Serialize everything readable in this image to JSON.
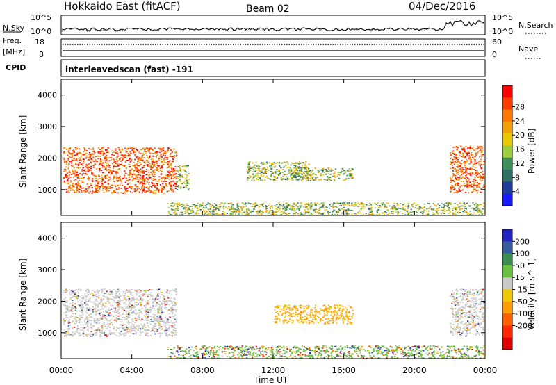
{
  "header": {
    "station": "Hokkaido East (fitACF)",
    "beam": "Beam 02",
    "date": "04/Dec/2016"
  },
  "top_panels": {
    "nsky_label": "N.Sky",
    "nsky_ticks": [
      "10^5",
      "10^0"
    ],
    "nsearch_label": "N.Search",
    "nsearch_ticks": [
      "10^5",
      "10^0"
    ],
    "freq_label": "Freq.",
    "freq_unit": "[MHz]",
    "freq_ticks": [
      "18",
      "8"
    ],
    "nave_label": "Nave",
    "nave_ticks": [
      "60",
      "0"
    ],
    "cpid_label": "CPID",
    "cpid_text": "interleavedscan (fast) -191"
  },
  "colors": {
    "power": [
      "#1a1aff",
      "#1e3c9a",
      "#2e6f63",
      "#3c8f5a",
      "#9ccc3c",
      "#e8c800",
      "#f0a000",
      "#ff7800",
      "#ff3c00",
      "#ff0000"
    ],
    "velocity": [
      "#2222c0",
      "#355aa0",
      "#3c8c50",
      "#6cc040",
      "#c8c8c8",
      "#f0c800",
      "#ff9c00",
      "#ff6000",
      "#ff2800",
      "#e00000"
    ]
  },
  "chart_data": [
    {
      "type": "heatmap",
      "title": "",
      "xlabel": "",
      "ylabel": "Slant Range [km]",
      "x_ticks": [
        "00:00",
        "04:00",
        "08:00",
        "12:00",
        "16:00",
        "20:00",
        "00:00"
      ],
      "y_ticks": [
        "1000",
        "2000",
        "3000",
        "4000"
      ],
      "ylim": [
        180,
        4500
      ],
      "colorbar_label": "Power [dB]",
      "colorbar_ticks": [
        "4",
        "8",
        "12",
        "16",
        "20",
        "24",
        "28"
      ],
      "features": [
        {
          "t": [
            0.1,
            6.5
          ],
          "range": [
            900,
            2350
          ],
          "level": "28"
        },
        {
          "t": [
            6.5,
            7.2
          ],
          "range": [
            1000,
            1800
          ],
          "level": "16"
        },
        {
          "t": [
            10.5,
            14.0
          ],
          "range": [
            1300,
            1900
          ],
          "level": "12"
        },
        {
          "t": [
            13.0,
            16.5
          ],
          "range": [
            1300,
            1700
          ],
          "level": "12"
        },
        {
          "t": [
            6.0,
            23.9
          ],
          "range": [
            200,
            600
          ],
          "level": "16"
        },
        {
          "t": [
            22.0,
            23.9
          ],
          "range": [
            900,
            2400
          ],
          "level": "28"
        }
      ]
    },
    {
      "type": "heatmap",
      "title": "",
      "xlabel": "Time UT",
      "ylabel": "Slant Range [km]",
      "x_ticks": [
        "00:00",
        "04:00",
        "08:00",
        "12:00",
        "16:00",
        "20:00",
        "00:00"
      ],
      "y_ticks": [
        "1000",
        "2000",
        "3000",
        "4000"
      ],
      "ylim": [
        180,
        4500
      ],
      "colorbar_label": "Velocity [m s^-1]",
      "colorbar_ticks": [
        "200",
        "100",
        "50",
        "15",
        "-15",
        "-50",
        "-100",
        "-200"
      ],
      "features": [
        {
          "t": [
            0.1,
            6.5
          ],
          "range": [
            900,
            2400
          ],
          "level": "-15 to 15"
        },
        {
          "t": [
            12.0,
            16.5
          ],
          "range": [
            1300,
            1900
          ],
          "level": "-50"
        },
        {
          "t": [
            6.0,
            23.9
          ],
          "range": [
            200,
            600
          ],
          "level": "50"
        },
        {
          "t": [
            22.0,
            23.9
          ],
          "range": [
            900,
            2400
          ],
          "level": "-15 to 15"
        }
      ]
    }
  ]
}
